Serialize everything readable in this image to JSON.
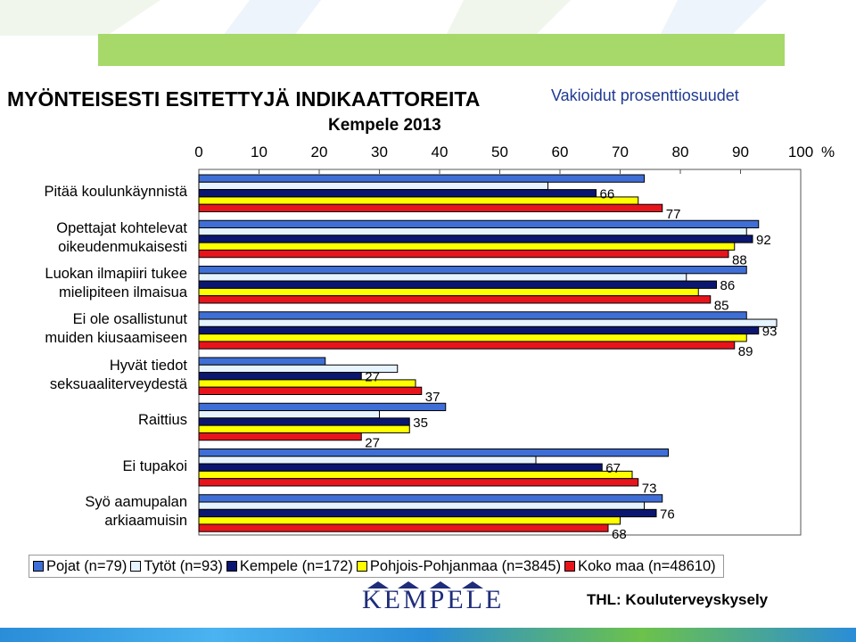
{
  "header": {
    "title": "MYÖNTEISESTI ESITETTYJÄ INDIKAATTOREITA",
    "subtitle": "Kempele 2013",
    "unit_note": "Vakioidut prosenttiosuudet",
    "percent_sign": "%"
  },
  "footer": {
    "logo_text": "KEMPELE",
    "source": "THL: Kouluterveyskysely"
  },
  "colors": {
    "Pojat": "#3f6fd6",
    "Tytöt": "#e6f4ff",
    "Kempele": "#0b1670",
    "Pohjois-Pohjanmaa": "#ffff00",
    "Koko maa": "#e8141c",
    "green_band": "#a6d96a"
  },
  "chart_data": {
    "type": "bar",
    "orientation": "horizontal",
    "xlim": [
      0,
      100
    ],
    "xticks": [
      "0",
      "10",
      "20",
      "30",
      "40",
      "50",
      "60",
      "70",
      "80",
      "90",
      "100"
    ],
    "grid": false,
    "legend_position": "bottom",
    "categories": [
      "Pitää koulunkäynnistä",
      "Opettajat kohtelevat oikeudenmukaisesti",
      "Luokan ilmapiiri tukee mielipiteen ilmaisua",
      "Ei ole osallistunut muiden kiusaamiseen",
      "Hyvät tiedot seksuaaliterveydestä",
      "Raittius",
      "Ei tupakoi",
      "Syö aamupalan arkiaamuisin"
    ],
    "category_lines": [
      [
        "Pitää koulunkäynnistä"
      ],
      [
        "Opettajat kohtelevat",
        "oikeudenmukaisesti"
      ],
      [
        "Luokan ilmapiiri tukee",
        "mielipiteen ilmaisua"
      ],
      [
        "Ei ole osallistunut",
        "muiden kiusaamiseen"
      ],
      [
        "Hyvät tiedot",
        "seksuaaliterveydestä"
      ],
      [
        "Raittius"
      ],
      [
        "Ei tupakoi"
      ],
      [
        "Syö aamupalan",
        "arkiaamuisin"
      ]
    ],
    "series": [
      {
        "name": "Pojat (n=79)",
        "values": [
          74,
          93,
          91,
          91,
          21,
          41,
          78,
          77
        ]
      },
      {
        "name": "Tytöt (n=93)",
        "values": [
          58,
          91,
          81,
          96,
          33,
          30,
          56,
          74
        ]
      },
      {
        "name": "Kempele (n=172)",
        "values": [
          66,
          92,
          86,
          93,
          27,
          35,
          67,
          76
        ]
      },
      {
        "name": "Pohjois-Pohjanmaa (n=3845)",
        "values": [
          73,
          89,
          83,
          91,
          36,
          35,
          72,
          70
        ]
      },
      {
        "name": "Koko maa (n=48610)",
        "values": [
          77,
          88,
          85,
          89,
          37,
          27,
          73,
          68
        ]
      }
    ],
    "data_labels": [
      {
        "category": 0,
        "series": 2,
        "text": "66"
      },
      {
        "category": 0,
        "series": 4,
        "text": "77"
      },
      {
        "category": 1,
        "series": 2,
        "text": "92"
      },
      {
        "category": 1,
        "series": 4,
        "text": "88"
      },
      {
        "category": 2,
        "series": 2,
        "text": "86"
      },
      {
        "category": 2,
        "series": 4,
        "text": "85"
      },
      {
        "category": 3,
        "series": 2,
        "text": "93"
      },
      {
        "category": 3,
        "series": 4,
        "text": "89"
      },
      {
        "category": 4,
        "series": 2,
        "text": "27"
      },
      {
        "category": 4,
        "series": 4,
        "text": "37"
      },
      {
        "category": 5,
        "series": 2,
        "text": "35"
      },
      {
        "category": 5,
        "series": 4,
        "text": "27"
      },
      {
        "category": 6,
        "series": 2,
        "text": "67"
      },
      {
        "category": 6,
        "series": 4,
        "text": "73"
      },
      {
        "category": 7,
        "series": 2,
        "text": "76"
      },
      {
        "category": 7,
        "series": 4,
        "text": "68"
      }
    ]
  }
}
